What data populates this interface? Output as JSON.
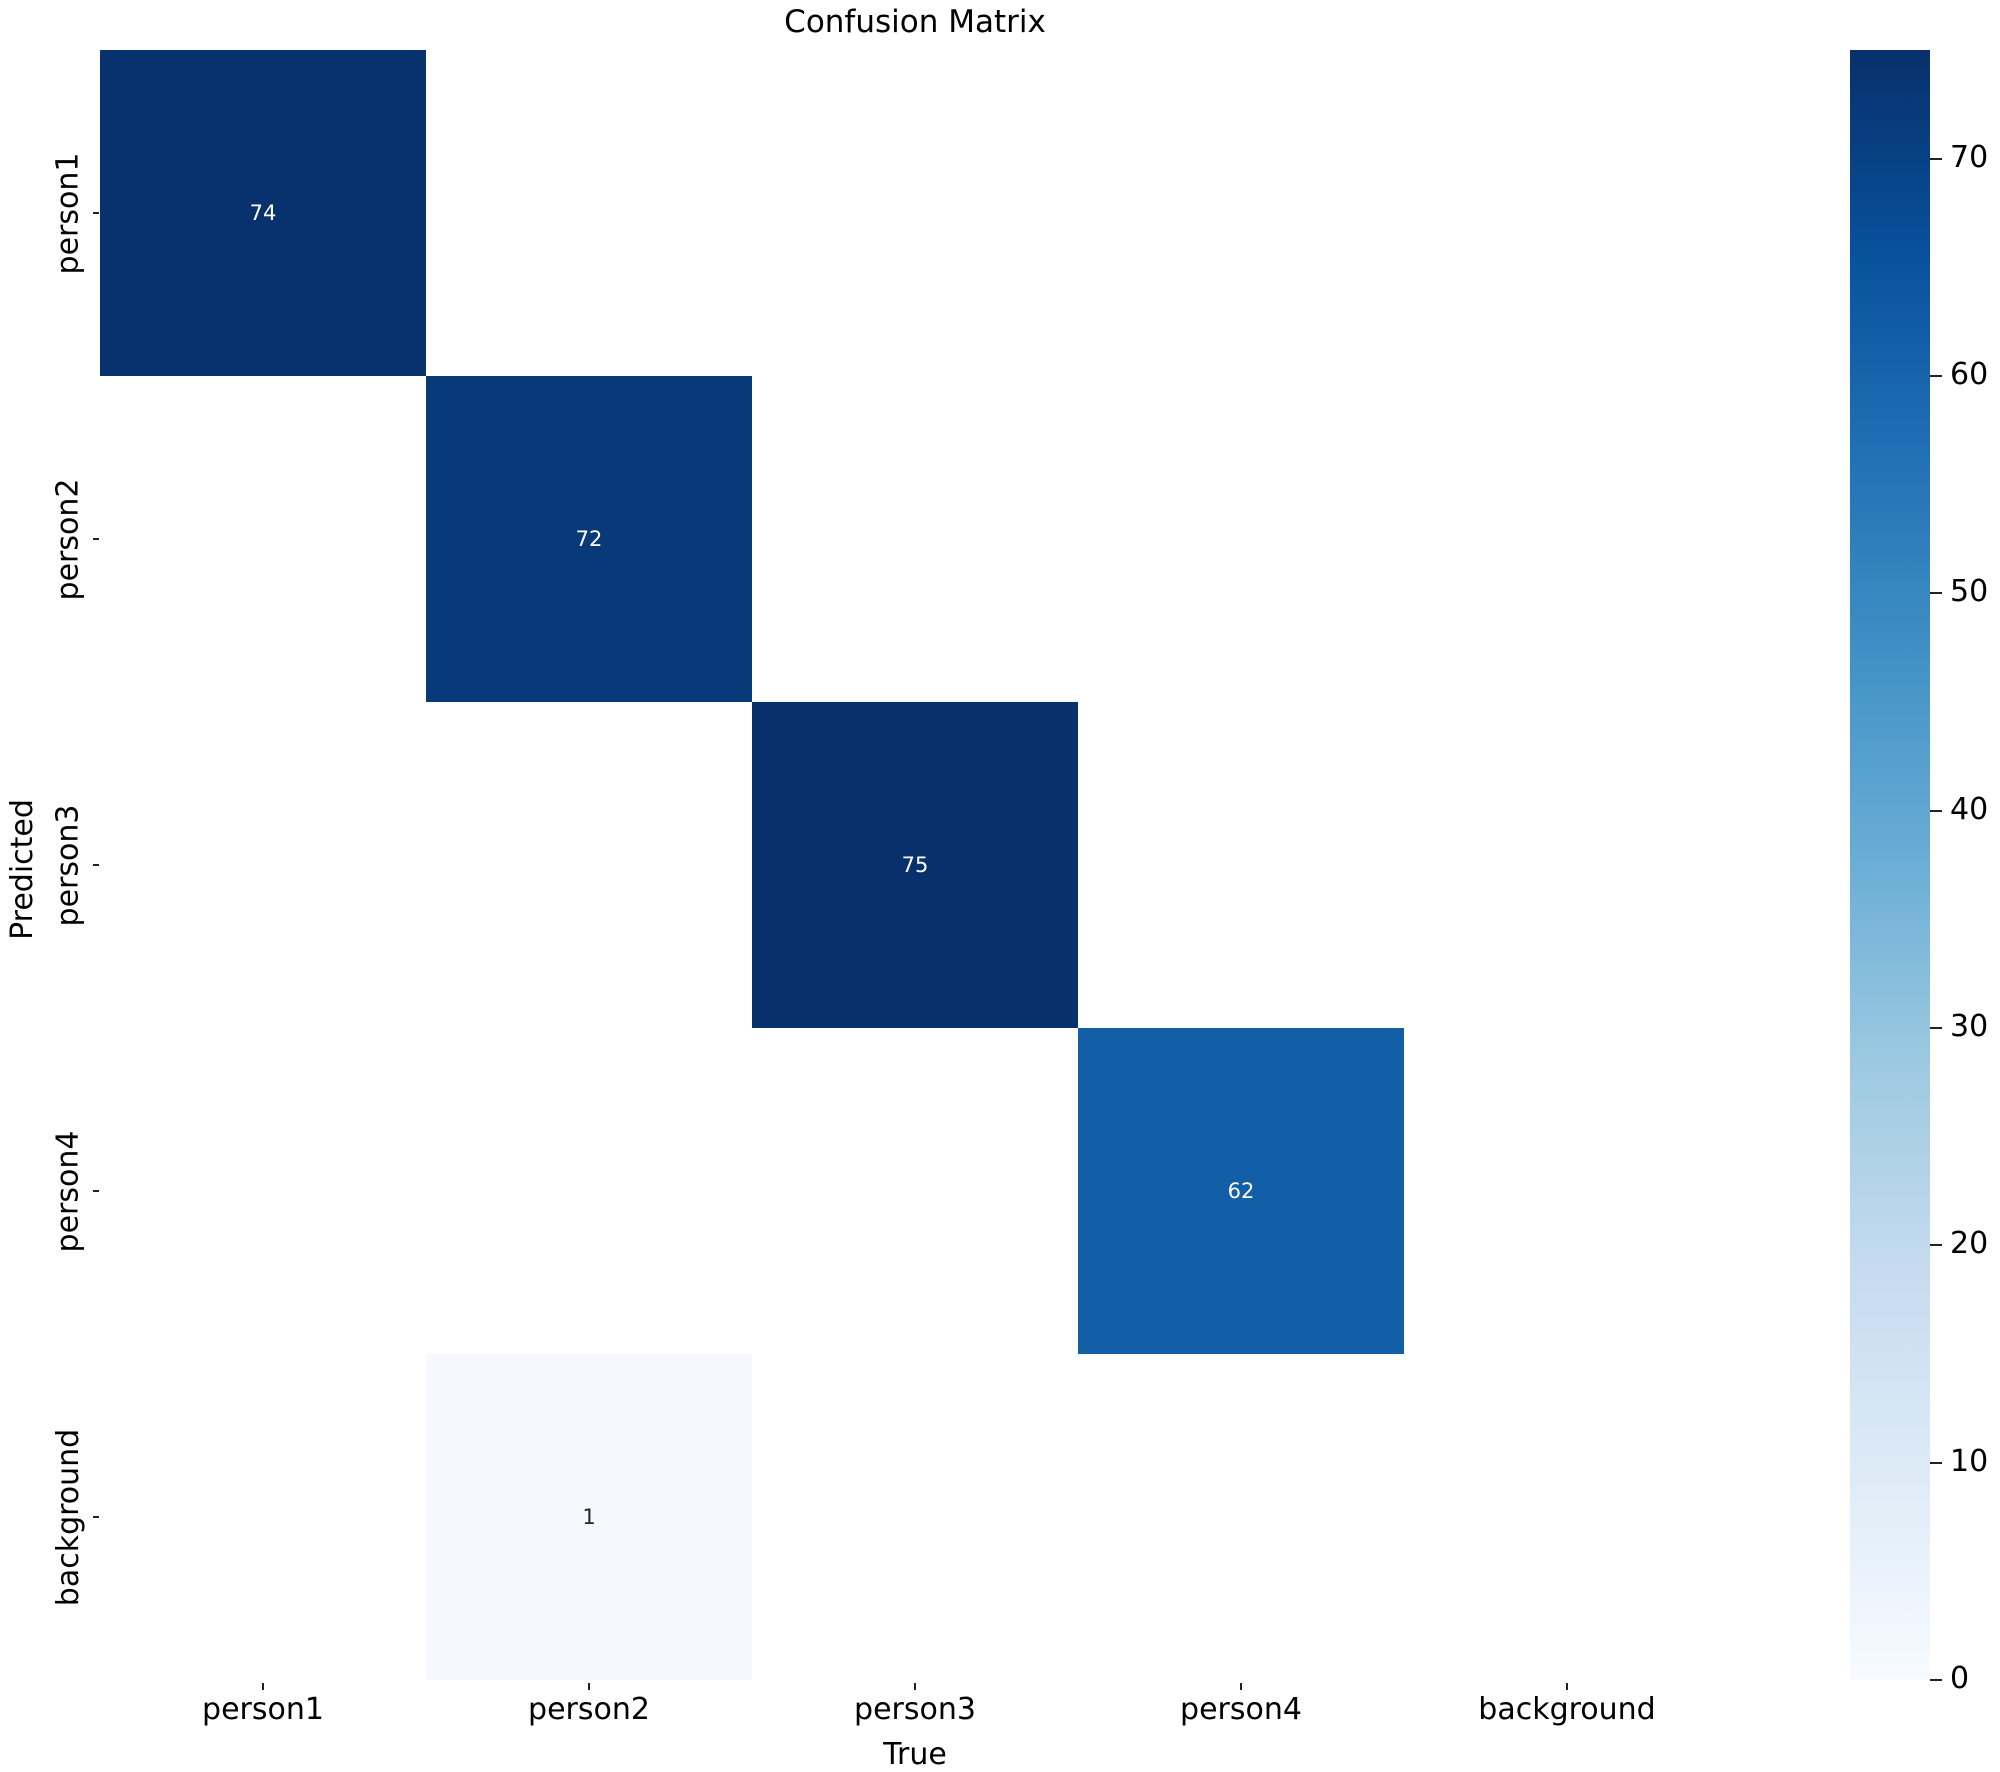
{
  "chart_data": {
    "type": "heatmap",
    "title": "Confusion Matrix",
    "xlabel": "True",
    "ylabel": "Predicted",
    "x_categories": [
      "person1",
      "person2",
      "person3",
      "person4",
      "background"
    ],
    "y_categories": [
      "person1",
      "person2",
      "person3",
      "person4",
      "background"
    ],
    "matrix": [
      [
        74,
        null,
        null,
        null,
        null
      ],
      [
        null,
        72,
        null,
        null,
        null
      ],
      [
        null,
        null,
        75,
        null,
        null
      ],
      [
        null,
        null,
        null,
        62,
        null
      ],
      [
        null,
        1,
        null,
        null,
        null
      ]
    ],
    "annotations": [
      {
        "row": 0,
        "col": 0,
        "value": "74"
      },
      {
        "row": 1,
        "col": 1,
        "value": "72"
      },
      {
        "row": 2,
        "col": 2,
        "value": "75"
      },
      {
        "row": 3,
        "col": 3,
        "value": "62"
      },
      {
        "row": 4,
        "col": 1,
        "value": "1"
      }
    ],
    "colormap": "Blues",
    "colorbar": {
      "min": 0,
      "max": 75,
      "ticks": [
        "0",
        "10",
        "20",
        "30",
        "40",
        "50",
        "60",
        "70"
      ]
    },
    "cell_colors": {
      "74": "#08326e",
      "72": "#083979",
      "75": "#08306b",
      "62": "#135fa7",
      "1": "#f5f9fe"
    },
    "empty_cell_color": "#ffffff",
    "grid": false
  }
}
